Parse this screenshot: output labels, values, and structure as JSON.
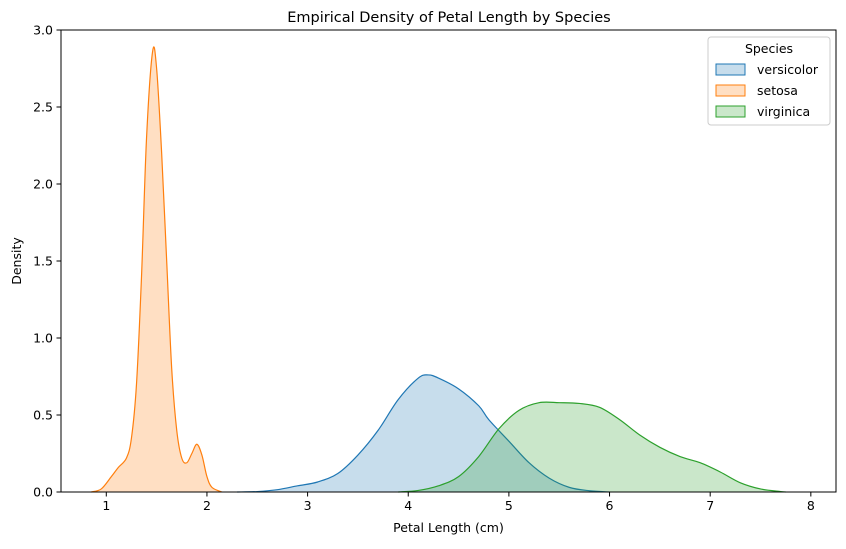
{
  "chart_data": {
    "type": "area",
    "title": "Empirical Density of Petal Length by Species",
    "xlabel": "Petal Length (cm)",
    "ylabel": "Density",
    "xlim": [
      0.55,
      8.25
    ],
    "ylim": [
      0,
      3.0
    ],
    "xticks": [
      1,
      2,
      3,
      4,
      5,
      6,
      7,
      8
    ],
    "yticks": [
      0.0,
      0.5,
      1.0,
      1.5,
      2.0,
      2.5,
      3.0
    ],
    "grid": false,
    "legend": {
      "title": "Species",
      "position": "top-right"
    },
    "series": [
      {
        "name": "versicolor",
        "color": "#1f77b4",
        "points": [
          [
            2.3,
            0.0
          ],
          [
            2.5,
            0.003
          ],
          [
            2.7,
            0.015
          ],
          [
            2.9,
            0.04
          ],
          [
            3.1,
            0.065
          ],
          [
            3.3,
            0.12
          ],
          [
            3.5,
            0.24
          ],
          [
            3.7,
            0.4
          ],
          [
            3.9,
            0.6
          ],
          [
            4.1,
            0.74
          ],
          [
            4.2,
            0.76
          ],
          [
            4.3,
            0.74
          ],
          [
            4.5,
            0.67
          ],
          [
            4.7,
            0.56
          ],
          [
            4.8,
            0.47
          ],
          [
            5.0,
            0.33
          ],
          [
            5.2,
            0.19
          ],
          [
            5.4,
            0.09
          ],
          [
            5.6,
            0.03
          ],
          [
            5.8,
            0.008
          ],
          [
            6.0,
            0.0
          ]
        ]
      },
      {
        "name": "setosa",
        "color": "#ff7f0e",
        "points": [
          [
            0.85,
            0.0
          ],
          [
            0.95,
            0.02
          ],
          [
            1.05,
            0.1
          ],
          [
            1.12,
            0.16
          ],
          [
            1.2,
            0.22
          ],
          [
            1.25,
            0.35
          ],
          [
            1.3,
            0.7
          ],
          [
            1.35,
            1.4
          ],
          [
            1.4,
            2.3
          ],
          [
            1.46,
            2.86
          ],
          [
            1.5,
            2.75
          ],
          [
            1.55,
            2.2
          ],
          [
            1.6,
            1.5
          ],
          [
            1.65,
            0.8
          ],
          [
            1.7,
            0.4
          ],
          [
            1.75,
            0.22
          ],
          [
            1.8,
            0.19
          ],
          [
            1.85,
            0.25
          ],
          [
            1.9,
            0.31
          ],
          [
            1.95,
            0.24
          ],
          [
            2.0,
            0.1
          ],
          [
            2.05,
            0.03
          ],
          [
            2.15,
            0.0
          ]
        ]
      },
      {
        "name": "virginica",
        "color": "#2ca02c",
        "points": [
          [
            3.9,
            0.0
          ],
          [
            4.1,
            0.01
          ],
          [
            4.3,
            0.04
          ],
          [
            4.5,
            0.1
          ],
          [
            4.7,
            0.23
          ],
          [
            4.9,
            0.41
          ],
          [
            5.1,
            0.53
          ],
          [
            5.3,
            0.58
          ],
          [
            5.5,
            0.58
          ],
          [
            5.7,
            0.575
          ],
          [
            5.9,
            0.55
          ],
          [
            6.1,
            0.47
          ],
          [
            6.3,
            0.37
          ],
          [
            6.5,
            0.29
          ],
          [
            6.7,
            0.23
          ],
          [
            6.9,
            0.19
          ],
          [
            7.1,
            0.13
          ],
          [
            7.3,
            0.06
          ],
          [
            7.5,
            0.02
          ],
          [
            7.7,
            0.003
          ],
          [
            7.75,
            0.0
          ]
        ]
      }
    ]
  }
}
